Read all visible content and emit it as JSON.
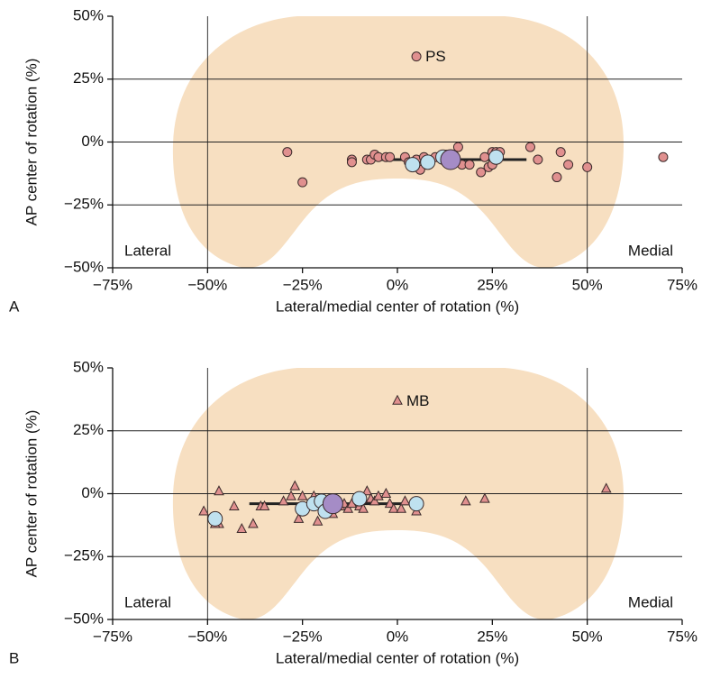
{
  "chart_data": [
    {
      "type": "scatter",
      "panel_label": "A",
      "xlabel": "Lateral/medial center of rotation (%)",
      "ylabel": "AP center of rotation (%)",
      "corner_labels": [
        "Lateral",
        "Medial"
      ],
      "annotations": [
        {
          "text": "PS",
          "x": 5,
          "y": 34
        }
      ],
      "xlim": [
        -75,
        75
      ],
      "ylim": [
        -50,
        50
      ],
      "xticks": [
        {
          "value": -75,
          "label": "−75%"
        },
        {
          "value": -50,
          "label": "−50%"
        },
        {
          "value": -25,
          "label": "−25%"
        },
        {
          "value": 0,
          "label": "0%"
        },
        {
          "value": 25,
          "label": "25%"
        },
        {
          "value": 50,
          "label": "50%"
        },
        {
          "value": 75,
          "label": "75%"
        }
      ],
      "yticks": [
        {
          "value": -50,
          "label": "−50%"
        },
        {
          "value": -25,
          "label": "−25%"
        },
        {
          "value": 0,
          "label": "0%"
        },
        {
          "value": 25,
          "label": "25%"
        },
        {
          "value": 50,
          "label": "50%"
        }
      ],
      "xgrid": [
        -50,
        50
      ],
      "ygrid": [
        -25,
        0,
        25
      ],
      "series": [
        {
          "marker": "line",
          "color": "#222222",
          "x": [
            -7,
            34
          ],
          "values": [
            -7,
            -7
          ]
        },
        {
          "marker": "small-circle",
          "color": "#e0908f",
          "x": [
            -29,
            -25,
            -12,
            -12,
            -8,
            -7,
            -6,
            -5,
            -3,
            -2,
            2,
            3,
            5,
            6,
            7,
            10,
            13,
            15,
            16,
            17,
            19,
            22,
            23,
            24,
            25,
            25,
            26,
            27,
            35,
            37,
            42,
            43,
            45,
            50,
            70,
            5
          ],
          "values": [
            -4,
            -16,
            -7,
            -8,
            -7,
            -7,
            -5,
            -6,
            -6,
            -6,
            -6,
            -8,
            -7,
            -11,
            -6,
            -6,
            -5,
            -6,
            -2,
            -9,
            -9,
            -12,
            -6,
            -10,
            -4,
            -9,
            -4,
            -4,
            -2,
            -7,
            -14,
            -4,
            -9,
            -10,
            -6,
            34
          ]
        },
        {
          "marker": "large-circle",
          "color": "#bfe1ef",
          "x": [
            4,
            8,
            12,
            26
          ],
          "values": [
            -9,
            -8,
            -6,
            -6
          ]
        },
        {
          "marker": "larger-circle",
          "color": "#a58cc6",
          "x": [
            14
          ],
          "values": [
            -7
          ]
        }
      ]
    },
    {
      "type": "scatter",
      "panel_label": "B",
      "xlabel": "Lateral/medial center of rotation (%)",
      "ylabel": "AP center of rotation (%)",
      "corner_labels": [
        "Lateral",
        "Medial"
      ],
      "annotations": [
        {
          "text": "MB",
          "x": 0,
          "y": 37
        }
      ],
      "xlim": [
        -75,
        75
      ],
      "ylim": [
        -50,
        50
      ],
      "xticks": [
        {
          "value": -75,
          "label": "−75%"
        },
        {
          "value": -50,
          "label": "−50%"
        },
        {
          "value": -25,
          "label": "−25%"
        },
        {
          "value": 0,
          "label": "0%"
        },
        {
          "value": 25,
          "label": "25%"
        },
        {
          "value": 50,
          "label": "50%"
        },
        {
          "value": 75,
          "label": "75%"
        }
      ],
      "yticks": [
        {
          "value": -50,
          "label": "−50%"
        },
        {
          "value": -25,
          "label": "−25%"
        },
        {
          "value": 0,
          "label": "0%"
        },
        {
          "value": 25,
          "label": "25%"
        },
        {
          "value": 50,
          "label": "50%"
        }
      ],
      "xgrid": [
        -50,
        50
      ],
      "ygrid": [
        -25,
        0,
        25
      ],
      "series": [
        {
          "marker": "line",
          "color": "#222222",
          "x": [
            -39,
            5
          ],
          "values": [
            -4,
            -4
          ]
        },
        {
          "marker": "triangle",
          "color": "#e0908f",
          "x": [
            -51,
            -47,
            -47,
            -48,
            -43,
            -41,
            -38,
            -36,
            -35,
            -30,
            -28,
            -27,
            -26,
            -25,
            -22,
            -21,
            -19,
            -17,
            -15,
            -14,
            -13,
            -12,
            -10,
            -9,
            -8,
            -7,
            -6,
            -5,
            -3,
            -2,
            -1,
            1,
            2,
            5,
            18,
            23,
            55,
            0
          ],
          "values": [
            -7,
            1,
            -12,
            -12,
            -5,
            -14,
            -12,
            -5,
            -5,
            -3,
            -1,
            3,
            -10,
            -1,
            -1,
            -11,
            -4,
            -8,
            -5,
            -4,
            -6,
            -4,
            -5,
            -6,
            1,
            -2,
            -3,
            -1,
            0,
            -4,
            -6,
            -6,
            -3,
            -7,
            -3,
            -2,
            2,
            37
          ]
        },
        {
          "marker": "large-circle",
          "color": "#bfe1ef",
          "x": [
            -48,
            -25,
            -22,
            -20,
            -19,
            -10,
            5
          ],
          "values": [
            -10,
            -6,
            -4,
            -3,
            -7,
            -2,
            -4
          ]
        },
        {
          "marker": "larger-circle",
          "color": "#a58cc6",
          "x": [
            -17
          ],
          "values": [
            -4
          ]
        }
      ]
    }
  ]
}
